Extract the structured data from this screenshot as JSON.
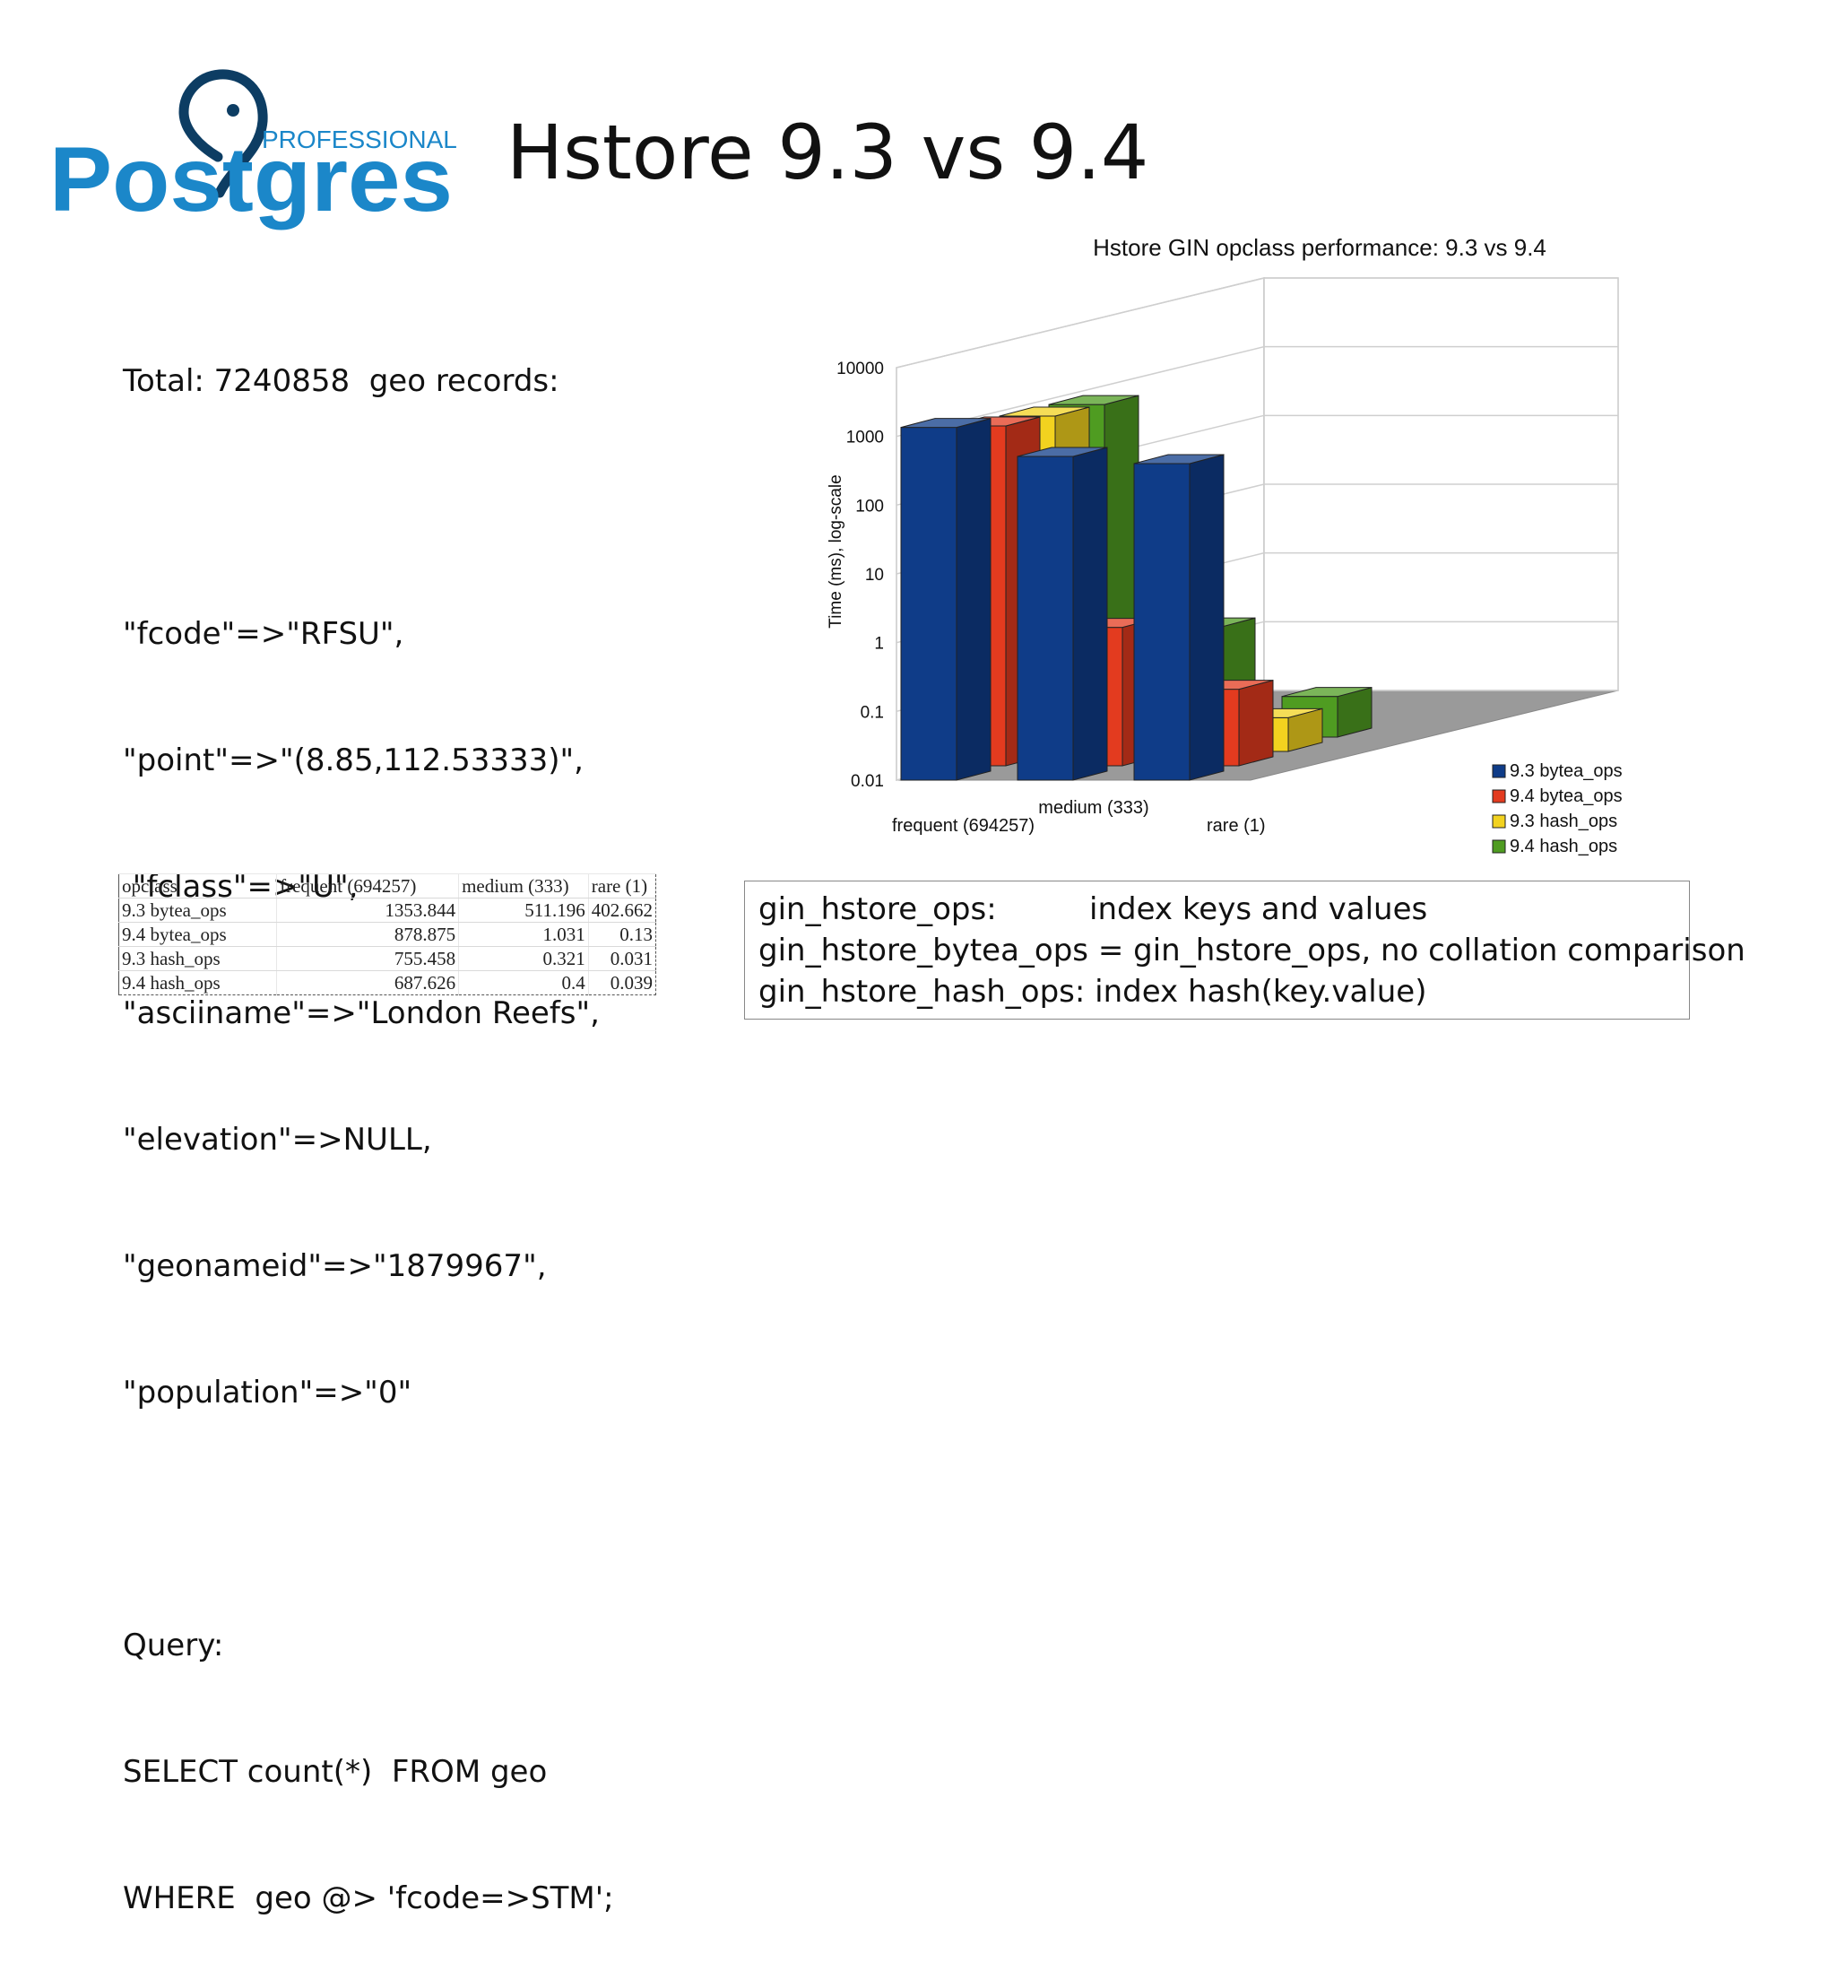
{
  "slide": {
    "title": "Hstore 9.3 vs 9.4"
  },
  "logo": {
    "word": "Postgres",
    "tagline": "PROFESSIONAL",
    "colors": {
      "blue": "#1b87c9",
      "navy": "#0d3d63"
    }
  },
  "left_text": {
    "total": "Total: 7240858  geo records:",
    "record_lines": [
      "\"fcode\"=>\"RFSU\",",
      "\"point\"=>\"(8.85,112.53333)\",",
      " \"fclass\"=>\"U\",",
      "\"asciiname\"=>\"London Reefs\",",
      "\"elevation\"=>NULL,",
      "\"geonameid\"=>\"1879967\",",
      "\"population\"=>\"0\""
    ],
    "query_label": "Query:",
    "query_lines": [
      "SELECT count(*)  FROM geo",
      "WHERE  geo @> 'fcode=>STM';"
    ]
  },
  "table": {
    "headers": [
      "opclass",
      "frequent (694257)",
      "medium (333)",
      "rare (1)"
    ],
    "rows": [
      [
        "9.3 bytea_ops",
        "1353.844",
        "511.196",
        "402.662"
      ],
      [
        "9.4 bytea_ops",
        "878.875",
        "1.031",
        "0.13"
      ],
      [
        "9.3 hash_ops",
        "755.458",
        "0.321",
        "0.031"
      ],
      [
        "9.4 hash_ops",
        "687.626",
        "0.4",
        "0.039"
      ]
    ]
  },
  "info": {
    "lines": [
      {
        "key": "gin_hstore_ops:",
        "value": "index keys and values"
      },
      {
        "key": "gin_hstore_bytea_ops = ",
        "value": "gin_hstore_ops, no collation comparison"
      },
      {
        "key": "gin_hstore_hash_ops:  ",
        "value": "index  hash(key.value)"
      }
    ]
  },
  "chart_data": {
    "type": "bar",
    "title": "Hstore GIN opclass performance: 9.3 vs 9.4",
    "ylabel": "Time (ms), log-scale",
    "xlabel": "",
    "y_scale": "log",
    "ylim": [
      0.01,
      10000
    ],
    "y_ticks": [
      "10000",
      "1000",
      "100",
      "10",
      "1",
      "0.1",
      "0.01"
    ],
    "categories": [
      "frequent (694257)",
      "medium (333)",
      "rare (1)"
    ],
    "series": [
      {
        "name": "9.3 bytea_ops",
        "color": "#0f3c88",
        "values": [
          1353.844,
          511.196,
          402.662
        ]
      },
      {
        "name": "9.4 bytea_ops",
        "color": "#e33b1f",
        "values": [
          878.875,
          1.031,
          0.13
        ]
      },
      {
        "name": "9.3 hash_ops",
        "color": "#f2d21f",
        "values": [
          755.458,
          0.321,
          0.031
        ]
      },
      {
        "name": "9.4 hash_ops",
        "color": "#4f9c21",
        "values": [
          687.626,
          0.4,
          0.039
        ]
      }
    ],
    "legend_position": "bottom-right",
    "grid": true
  }
}
